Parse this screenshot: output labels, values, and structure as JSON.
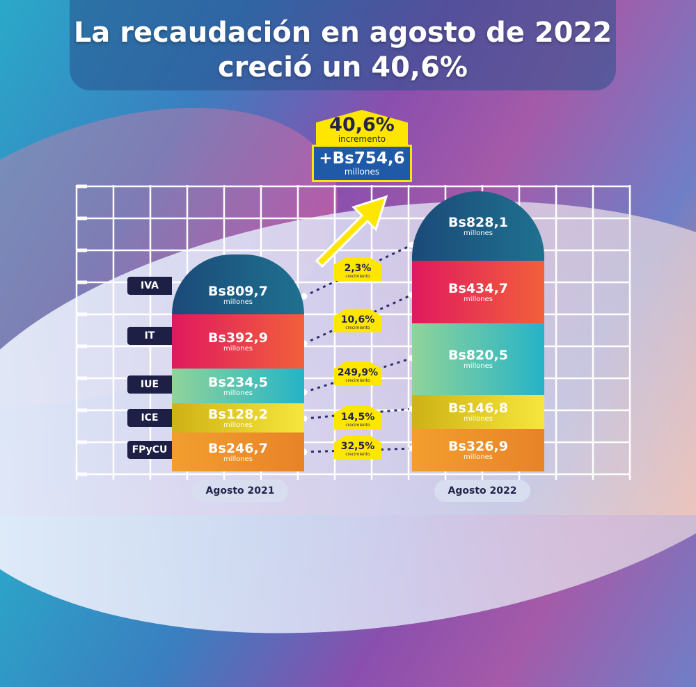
{
  "title": "La recaudación en agosto de 2022 creció un 40,6%",
  "summary": {
    "percent": "40,6%",
    "percent_label": "incremento",
    "amount": "+Bs754,6",
    "amount_unit": "millones"
  },
  "chart_data": {
    "type": "bar",
    "stacked": true,
    "title": "La recaudación en agosto de 2022 creció un 40,6%",
    "categories": [
      "Agosto 2021",
      "Agosto 2022"
    ],
    "unit": "millones de Bs",
    "series": [
      {
        "name": "IVA",
        "values": [
          809.7,
          828.1
        ],
        "labels": [
          "Bs809,7",
          "Bs828,1"
        ],
        "growth": "2,3%",
        "color": "#1d5a80"
      },
      {
        "name": "IT",
        "values": [
          392.9,
          434.7
        ],
        "labels": [
          "Bs392,9",
          "Bs434,7"
        ],
        "growth": "10,6%",
        "color": "#e4245a"
      },
      {
        "name": "IUE",
        "values": [
          234.5,
          820.5
        ],
        "labels": [
          "Bs234,5",
          "Bs820,5"
        ],
        "growth": "249,9%",
        "color": "#4cc2b0"
      },
      {
        "name": "ICE",
        "values": [
          128.2,
          146.8
        ],
        "labels": [
          "Bs128,2",
          "Bs146,8"
        ],
        "growth": "14,5%",
        "color": "#e2cc22"
      },
      {
        "name": "FPyCU",
        "values": [
          246.7,
          326.9
        ],
        "labels": [
          "Bs246,7",
          "Bs326,9"
        ],
        "growth": "32,5%",
        "color": "#f0a030"
      }
    ],
    "value_unit_label": "millones",
    "growth_label": "crecimiento",
    "grid": true
  }
}
